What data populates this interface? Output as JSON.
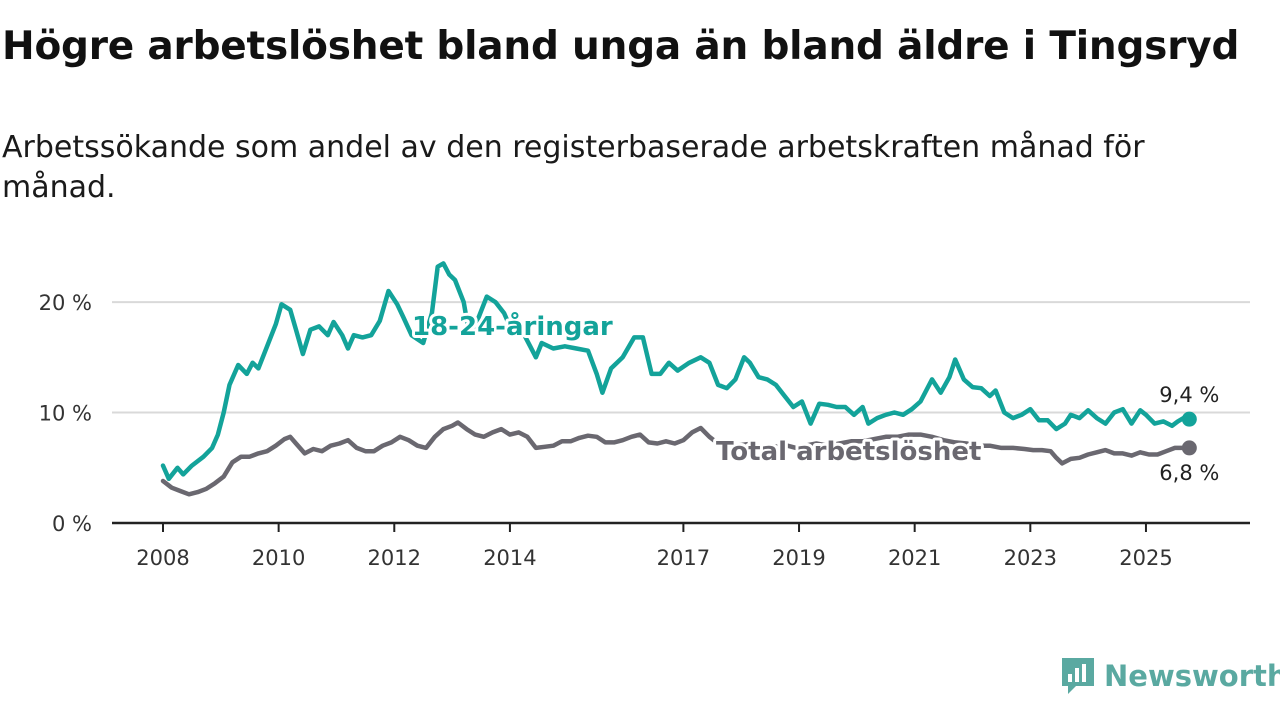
{
  "title": "Högre arbetslöshet bland unga än bland äldre i Tingsryd",
  "subtitle": "Arbetssökande som andel av den registerbaserade arbetskraften månad för månad.",
  "brand": {
    "name": "Newsworthy",
    "icon": "newsworthy-logo-icon"
  },
  "colors": {
    "young": "#13a39a",
    "total": "#6a6870",
    "grid": "#d9d9d9",
    "axis": "#222222"
  },
  "chart_data": {
    "type": "line",
    "title": "Högre arbetslöshet bland unga än bland äldre i Tingsryd",
    "xlabel": "",
    "ylabel": "",
    "xlim": [
      2008.0,
      2025.9
    ],
    "ylim": [
      0,
      22
    ],
    "x_ticks": [
      2008,
      2010,
      2012,
      2014,
      2017,
      2019,
      2021,
      2023,
      2025
    ],
    "y_ticks": [
      {
        "value": 0,
        "label": "0 %"
      },
      {
        "value": 10,
        "label": "10 %"
      },
      {
        "value": 20,
        "label": "20 %"
      }
    ],
    "series": [
      {
        "name": "18-24-åringar",
        "label": "18-24-åringar",
        "end_label": "9,4 %",
        "points": [
          [
            2008.0,
            5.2
          ],
          [
            2008.1,
            4.0
          ],
          [
            2008.25,
            5.0
          ],
          [
            2008.35,
            4.4
          ],
          [
            2008.5,
            5.2
          ],
          [
            2008.7,
            6.0
          ],
          [
            2008.85,
            6.8
          ],
          [
            2008.95,
            8.0
          ],
          [
            2009.05,
            10.0
          ],
          [
            2009.15,
            12.5
          ],
          [
            2009.3,
            14.3
          ],
          [
            2009.45,
            13.5
          ],
          [
            2009.55,
            14.5
          ],
          [
            2009.65,
            14.0
          ],
          [
            2009.8,
            16.0
          ],
          [
            2009.95,
            18.0
          ],
          [
            2010.05,
            19.8
          ],
          [
            2010.2,
            19.3
          ],
          [
            2010.3,
            17.5
          ],
          [
            2010.42,
            15.3
          ],
          [
            2010.55,
            17.5
          ],
          [
            2010.7,
            17.8
          ],
          [
            2010.85,
            17.0
          ],
          [
            2010.95,
            18.2
          ],
          [
            2011.1,
            17.0
          ],
          [
            2011.2,
            15.8
          ],
          [
            2011.3,
            17.0
          ],
          [
            2011.45,
            16.8
          ],
          [
            2011.6,
            17.0
          ],
          [
            2011.75,
            18.3
          ],
          [
            2011.9,
            21.0
          ],
          [
            2012.05,
            19.8
          ],
          [
            2012.15,
            18.7
          ],
          [
            2012.3,
            17.0
          ],
          [
            2012.5,
            16.3
          ],
          [
            2012.65,
            19.0
          ],
          [
            2012.75,
            23.2
          ],
          [
            2012.85,
            23.5
          ],
          [
            2012.95,
            22.5
          ],
          [
            2013.05,
            22.0
          ],
          [
            2013.2,
            20.0
          ],
          [
            2013.3,
            17.0
          ],
          [
            2013.45,
            18.5
          ],
          [
            2013.6,
            20.5
          ],
          [
            2013.75,
            20.0
          ],
          [
            2013.9,
            19.0
          ],
          [
            2014.05,
            17.2
          ],
          [
            2014.2,
            17.5
          ],
          [
            2014.35,
            16.0
          ],
          [
            2014.45,
            15.0
          ],
          [
            2014.55,
            16.3
          ],
          [
            2014.75,
            15.8
          ],
          [
            2014.95,
            16.0
          ],
          [
            2015.15,
            15.8
          ],
          [
            2015.35,
            15.6
          ],
          [
            2015.5,
            13.5
          ],
          [
            2015.6,
            11.8
          ],
          [
            2015.75,
            14.0
          ],
          [
            2015.95,
            15.0
          ],
          [
            2016.15,
            16.8
          ],
          [
            2016.3,
            16.8
          ],
          [
            2016.45,
            13.5
          ],
          [
            2016.6,
            13.5
          ],
          [
            2016.75,
            14.5
          ],
          [
            2016.9,
            13.8
          ],
          [
            2017.1,
            14.5
          ],
          [
            2017.3,
            15.0
          ],
          [
            2017.45,
            14.5
          ],
          [
            2017.6,
            12.5
          ],
          [
            2017.75,
            12.2
          ],
          [
            2017.9,
            13.0
          ],
          [
            2018.05,
            15.0
          ],
          [
            2018.15,
            14.5
          ],
          [
            2018.3,
            13.2
          ],
          [
            2018.45,
            13.0
          ],
          [
            2018.6,
            12.5
          ],
          [
            2018.75,
            11.5
          ],
          [
            2018.9,
            10.5
          ],
          [
            2019.05,
            11.0
          ],
          [
            2019.2,
            9.0
          ],
          [
            2019.35,
            10.8
          ],
          [
            2019.5,
            10.7
          ],
          [
            2019.65,
            10.5
          ],
          [
            2019.8,
            10.5
          ],
          [
            2019.95,
            9.8
          ],
          [
            2020.1,
            10.5
          ],
          [
            2020.2,
            9.0
          ],
          [
            2020.35,
            9.5
          ],
          [
            2020.5,
            9.8
          ],
          [
            2020.65,
            10.0
          ],
          [
            2020.8,
            9.8
          ],
          [
            2020.95,
            10.3
          ],
          [
            2021.1,
            11.0
          ],
          [
            2021.3,
            13.0
          ],
          [
            2021.45,
            11.8
          ],
          [
            2021.6,
            13.2
          ],
          [
            2021.7,
            14.8
          ],
          [
            2021.85,
            13.0
          ],
          [
            2022.0,
            12.3
          ],
          [
            2022.15,
            12.2
          ],
          [
            2022.3,
            11.5
          ],
          [
            2022.4,
            12.0
          ],
          [
            2022.55,
            10.0
          ],
          [
            2022.7,
            9.5
          ],
          [
            2022.85,
            9.8
          ],
          [
            2023.0,
            10.3
          ],
          [
            2023.15,
            9.3
          ],
          [
            2023.3,
            9.3
          ],
          [
            2023.45,
            8.5
          ],
          [
            2023.6,
            9.0
          ],
          [
            2023.7,
            9.8
          ],
          [
            2023.85,
            9.5
          ],
          [
            2024.0,
            10.2
          ],
          [
            2024.15,
            9.5
          ],
          [
            2024.3,
            9.0
          ],
          [
            2024.45,
            10.0
          ],
          [
            2024.6,
            10.3
          ],
          [
            2024.75,
            9.0
          ],
          [
            2024.9,
            10.2
          ],
          [
            2025.0,
            9.8
          ],
          [
            2025.15,
            9.0
          ],
          [
            2025.3,
            9.2
          ],
          [
            2025.45,
            8.8
          ],
          [
            2025.55,
            9.2
          ],
          [
            2025.65,
            9.5
          ],
          [
            2025.75,
            9.4
          ]
        ]
      },
      {
        "name": "Total arbetslöshet",
        "label": "Total arbetslöshet",
        "end_label": "6,8 %",
        "points": [
          [
            2008.0,
            3.8
          ],
          [
            2008.15,
            3.2
          ],
          [
            2008.3,
            2.9
          ],
          [
            2008.45,
            2.6
          ],
          [
            2008.6,
            2.8
          ],
          [
            2008.75,
            3.1
          ],
          [
            2008.9,
            3.6
          ],
          [
            2009.05,
            4.2
          ],
          [
            2009.2,
            5.5
          ],
          [
            2009.35,
            6.0
          ],
          [
            2009.5,
            6.0
          ],
          [
            2009.65,
            6.3
          ],
          [
            2009.8,
            6.5
          ],
          [
            2009.95,
            7.0
          ],
          [
            2010.1,
            7.6
          ],
          [
            2010.2,
            7.8
          ],
          [
            2010.3,
            7.2
          ],
          [
            2010.45,
            6.3
          ],
          [
            2010.6,
            6.7
          ],
          [
            2010.75,
            6.5
          ],
          [
            2010.9,
            7.0
          ],
          [
            2011.05,
            7.2
          ],
          [
            2011.2,
            7.5
          ],
          [
            2011.35,
            6.8
          ],
          [
            2011.5,
            6.5
          ],
          [
            2011.65,
            6.5
          ],
          [
            2011.8,
            7.0
          ],
          [
            2011.95,
            7.3
          ],
          [
            2012.1,
            7.8
          ],
          [
            2012.25,
            7.5
          ],
          [
            2012.4,
            7.0
          ],
          [
            2012.55,
            6.8
          ],
          [
            2012.7,
            7.8
          ],
          [
            2012.85,
            8.5
          ],
          [
            2013.0,
            8.8
          ],
          [
            2013.1,
            9.1
          ],
          [
            2013.25,
            8.5
          ],
          [
            2013.4,
            8.0
          ],
          [
            2013.55,
            7.8
          ],
          [
            2013.7,
            8.2
          ],
          [
            2013.85,
            8.5
          ],
          [
            2014.0,
            8.0
          ],
          [
            2014.15,
            8.2
          ],
          [
            2014.3,
            7.8
          ],
          [
            2014.45,
            6.8
          ],
          [
            2014.6,
            6.9
          ],
          [
            2014.75,
            7.0
          ],
          [
            2014.9,
            7.4
          ],
          [
            2015.05,
            7.4
          ],
          [
            2015.2,
            7.7
          ],
          [
            2015.35,
            7.9
          ],
          [
            2015.5,
            7.8
          ],
          [
            2015.65,
            7.3
          ],
          [
            2015.8,
            7.3
          ],
          [
            2015.95,
            7.5
          ],
          [
            2016.1,
            7.8
          ],
          [
            2016.25,
            8.0
          ],
          [
            2016.4,
            7.3
          ],
          [
            2016.55,
            7.2
          ],
          [
            2016.7,
            7.4
          ],
          [
            2016.85,
            7.2
          ],
          [
            2017.0,
            7.5
          ],
          [
            2017.15,
            8.2
          ],
          [
            2017.3,
            8.6
          ],
          [
            2017.45,
            7.8
          ],
          [
            2017.6,
            7.2
          ],
          [
            2017.75,
            7.2
          ],
          [
            2017.9,
            7.0
          ],
          [
            2018.05,
            7.1
          ],
          [
            2018.2,
            7.2
          ],
          [
            2018.35,
            6.9
          ],
          [
            2018.5,
            7.0
          ],
          [
            2018.65,
            6.9
          ],
          [
            2018.8,
            7.0
          ],
          [
            2018.95,
            6.8
          ],
          [
            2019.1,
            7.0
          ],
          [
            2019.3,
            7.2
          ],
          [
            2019.5,
            7.0
          ],
          [
            2019.7,
            7.2
          ],
          [
            2019.9,
            7.4
          ],
          [
            2020.1,
            7.4
          ],
          [
            2020.3,
            7.6
          ],
          [
            2020.5,
            7.8
          ],
          [
            2020.7,
            7.8
          ],
          [
            2020.9,
            8.0
          ],
          [
            2021.1,
            8.0
          ],
          [
            2021.3,
            7.8
          ],
          [
            2021.5,
            7.5
          ],
          [
            2021.7,
            7.3
          ],
          [
            2021.9,
            7.2
          ],
          [
            2022.1,
            7.0
          ],
          [
            2022.3,
            7.0
          ],
          [
            2022.5,
            6.8
          ],
          [
            2022.7,
            6.8
          ],
          [
            2022.9,
            6.7
          ],
          [
            2023.05,
            6.6
          ],
          [
            2023.2,
            6.6
          ],
          [
            2023.35,
            6.5
          ],
          [
            2023.45,
            5.9
          ],
          [
            2023.55,
            5.4
          ],
          [
            2023.7,
            5.8
          ],
          [
            2023.85,
            5.9
          ],
          [
            2024.0,
            6.2
          ],
          [
            2024.15,
            6.4
          ],
          [
            2024.3,
            6.6
          ],
          [
            2024.45,
            6.3
          ],
          [
            2024.6,
            6.3
          ],
          [
            2024.75,
            6.1
          ],
          [
            2024.9,
            6.4
          ],
          [
            2025.05,
            6.2
          ],
          [
            2025.2,
            6.2
          ],
          [
            2025.35,
            6.5
          ],
          [
            2025.5,
            6.8
          ],
          [
            2025.65,
            6.8
          ],
          [
            2025.75,
            6.8
          ]
        ]
      }
    ]
  }
}
